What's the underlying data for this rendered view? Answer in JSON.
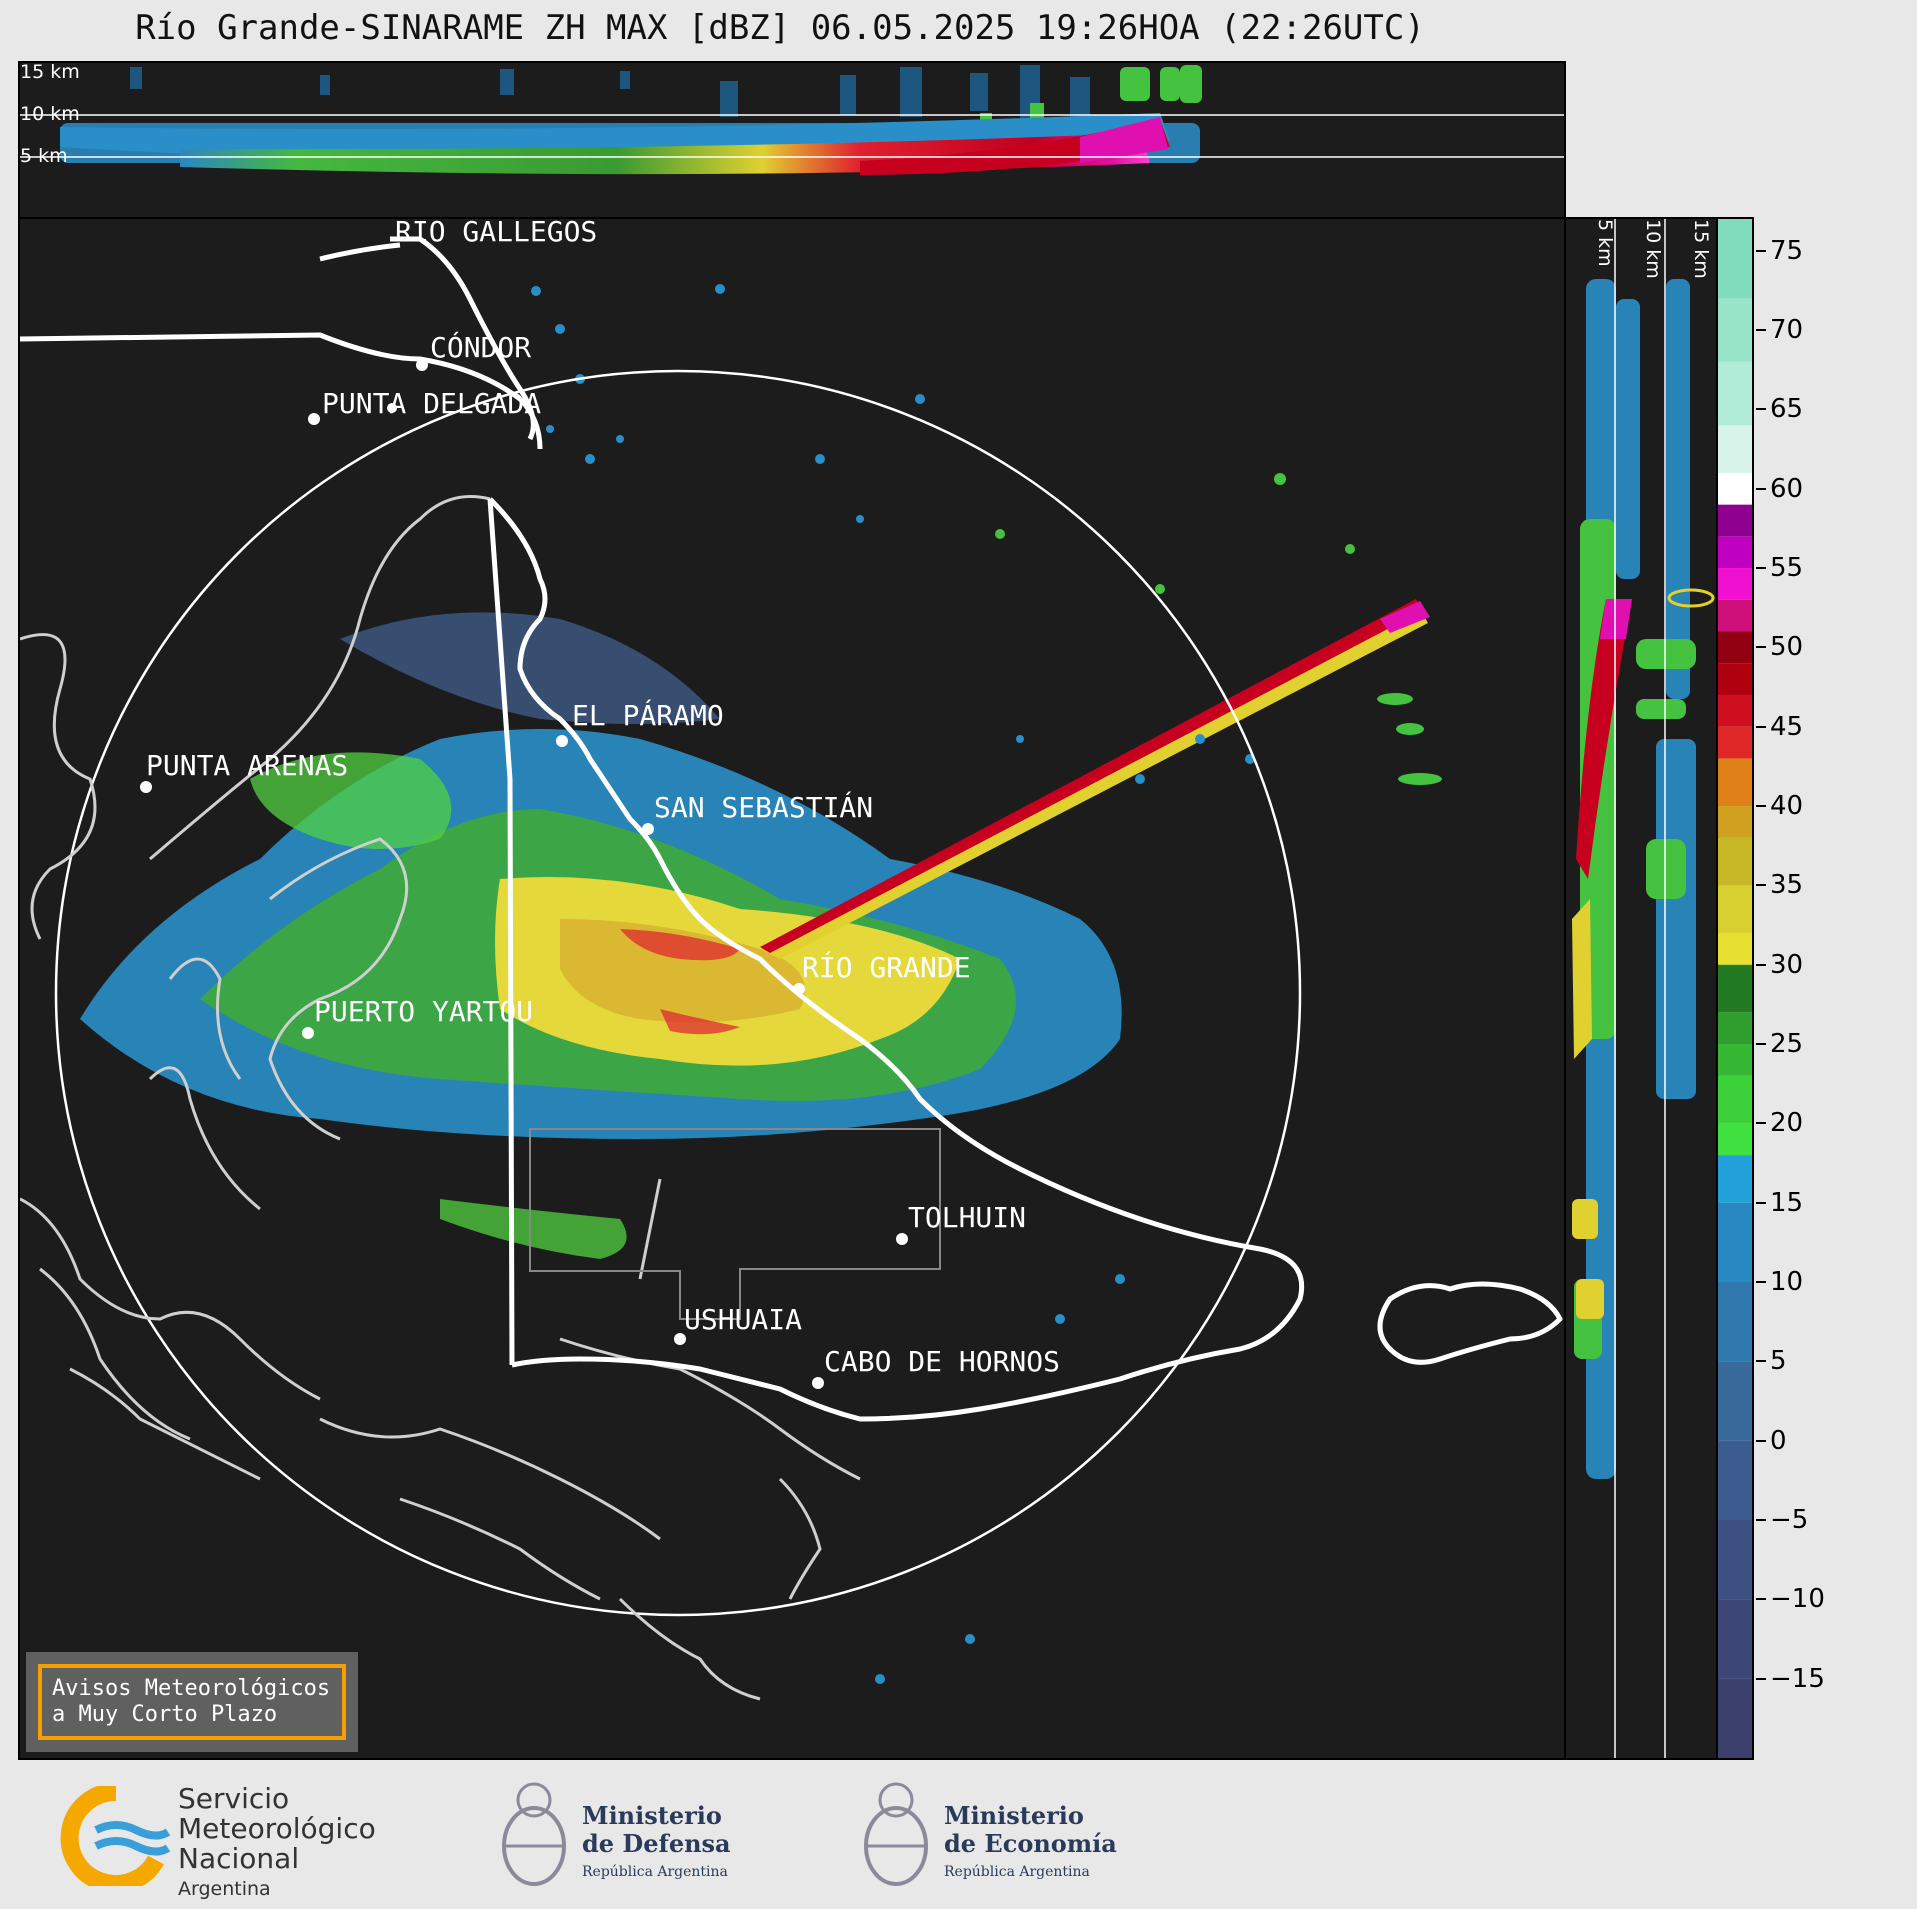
{
  "title": "Río Grande-SINARAME ZH MAX [dBZ] 06.05.2025 19:26HOA (22:26UTC)",
  "top_panel": {
    "altitude_labels": [
      "15 km",
      "10 km",
      "5 km"
    ]
  },
  "side_panel": {
    "altitude_labels": [
      "5 km",
      "10 km",
      "15 km"
    ]
  },
  "colorbar": {
    "unit": "dBZ",
    "ticks": [
      "75",
      "70",
      "65",
      "60",
      "55",
      "50",
      "45",
      "40",
      "35",
      "30",
      "25",
      "20",
      "15",
      "10",
      "5",
      "0",
      "−5",
      "−10",
      "−15"
    ],
    "range": [
      -20,
      77
    ]
  },
  "cities": [
    {
      "name": "RÍO GALLEGOS"
    },
    {
      "name": "CÓNDOR"
    },
    {
      "name": "PUNTA DELGADA"
    },
    {
      "name": "EL PÁRAMO"
    },
    {
      "name": "PUNTA ARENAS"
    },
    {
      "name": "SAN SEBASTIÁN"
    },
    {
      "name": "RÍO GRANDE"
    },
    {
      "name": "PUERTO YARTOU"
    },
    {
      "name": "TOLHUIN"
    },
    {
      "name": "USHUAIA"
    },
    {
      "name": "CABO DE HORNOS"
    }
  ],
  "warning_box": {
    "line1": "Avisos Meteorológicos",
    "line2": "a Muy Corto Plazo"
  },
  "logos": {
    "smn": {
      "line1": "Servicio",
      "line2": "Meteorológico",
      "line3": "Nacional",
      "country": "Argentina"
    },
    "defensa": {
      "line1": "Ministerio",
      "line2": "de Defensa",
      "sub": "República Argentina"
    },
    "economia": {
      "line1": "Ministerio",
      "line2": "de Economía",
      "sub": "República Argentina"
    }
  },
  "colors": {
    "background": "#1c1c1c",
    "page": "#e8e8e8",
    "range_ring": "#ffffff",
    "warning_border": "#f5a000"
  }
}
